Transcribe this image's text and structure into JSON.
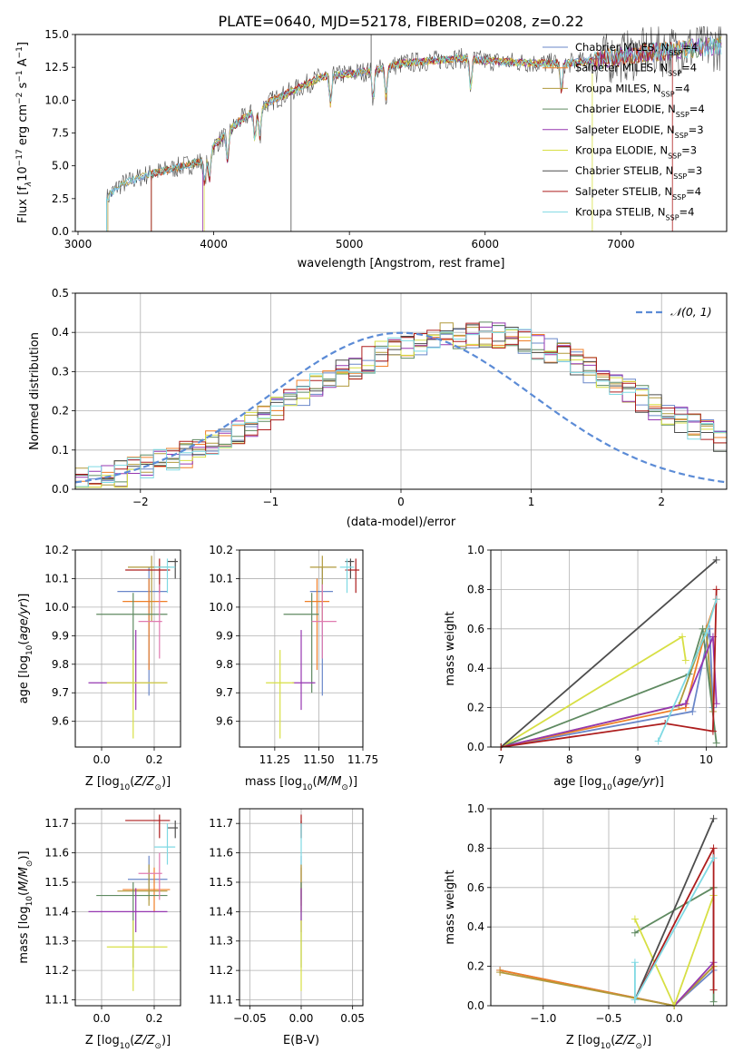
{
  "figure_title": "PLATE=0640, MJD=52178, FIBERID=0208, z=0.22",
  "legend": [
    "Chabrier MILES",
    "Salpeter MILES",
    "Kroupa MILES",
    "Chabrier ELODIE",
    "Salpeter ELODIE",
    "Kroupa ELODIE",
    "Chabrier STELIB",
    "Salpeter STELIB",
    "Kroupa STELIB"
  ],
  "nssp_label": "N",
  "nssp_sub": "SSP",
  "model_nssp": [
    "=4",
    "=4",
    "=4",
    "=4",
    "=3",
    "=3",
    "=3",
    "=4",
    "=4"
  ],
  "model_colors": [
    "#6a87c9",
    "#ef7f27",
    "#b19a3c",
    "#5f8a61",
    "#9537b0",
    "#d7df44",
    "#4d4d4d",
    "#ad1d1d",
    "#7fd9e3"
  ],
  "normal_legend": "𝒩(0, 1)",
  "chart_data": [
    {
      "id": "spectrum",
      "type": "line",
      "title": "PLATE=0640, MJD=52178, FIBERID=0208, z=0.22",
      "xlabel": "wavelength [Angstrom, rest frame]",
      "ylabel": "Flux [f_λ 10^-17 erg cm^-2 s^-1 A^-1]",
      "xlim": [
        2980,
        7780
      ],
      "ylim": [
        0,
        15
      ],
      "xticks": [
        "3000",
        "4000",
        "5000",
        "6000",
        "7000"
      ],
      "yticks": [
        "0.0",
        "2.5",
        "5.0",
        "7.5",
        "10.0",
        "12.5",
        "15.0"
      ],
      "data_range": [
        3210,
        7740
      ],
      "continuum": [
        [
          3210,
          2.5
        ],
        [
          3300,
          3.5
        ],
        [
          3500,
          4.3
        ],
        [
          3700,
          4.8
        ],
        [
          3900,
          5.3
        ],
        [
          4000,
          6.5
        ],
        [
          4200,
          8.5
        ],
        [
          4400,
          9.8
        ],
        [
          4600,
          10.8
        ],
        [
          4800,
          11.8
        ],
        [
          5000,
          12.0
        ],
        [
          5200,
          12.3
        ],
        [
          5400,
          12.8
        ],
        [
          5600,
          13.0
        ],
        [
          5800,
          13.2
        ],
        [
          6000,
          13.0
        ],
        [
          6200,
          12.9
        ],
        [
          6400,
          12.8
        ],
        [
          6600,
          12.8
        ],
        [
          6800,
          13.0
        ],
        [
          7000,
          13.3
        ],
        [
          7200,
          13.6
        ],
        [
          7400,
          13.8
        ],
        [
          7740,
          14.2
        ]
      ],
      "grid": false,
      "legend_position": "right"
    },
    {
      "id": "residuals",
      "type": "histogram",
      "xlabel": "(data-model)/error",
      "ylabel": "Normed distribution",
      "xlim": [
        -2.5,
        2.5
      ],
      "ylim": [
        0,
        0.5
      ],
      "xticks": [
        "−2",
        "−1",
        "0",
        "1",
        "2"
      ],
      "yticks": [
        "0.0",
        "0.1",
        "0.2",
        "0.3",
        "0.4",
        "0.5"
      ],
      "bins": 50,
      "values": [
        0.025,
        0.03,
        0.035,
        0.04,
        0.05,
        0.058,
        0.068,
        0.078,
        0.09,
        0.103,
        0.117,
        0.133,
        0.15,
        0.168,
        0.186,
        0.205,
        0.224,
        0.243,
        0.262,
        0.28,
        0.298,
        0.315,
        0.33,
        0.345,
        0.357,
        0.368,
        0.377,
        0.384,
        0.39,
        0.393,
        0.395,
        0.393,
        0.39,
        0.384,
        0.375,
        0.365,
        0.352,
        0.338,
        0.322,
        0.305,
        0.287,
        0.268,
        0.249,
        0.23,
        0.211,
        0.193,
        0.175,
        0.158,
        0.142,
        0.127
      ],
      "grid": true,
      "legend_position": "top-right"
    },
    {
      "id": "age_vs_Z",
      "type": "errorbar",
      "xlabel": "Z [log10(Z/Z☉)]",
      "ylabel": "age [log10(age/yr)]",
      "xlim": [
        -0.1,
        0.3
      ],
      "ylim": [
        9.51,
        10.2
      ],
      "xticks": [
        "0.0",
        "0.2"
      ],
      "yticks": [
        "9.6",
        "9.7",
        "9.8",
        "9.9",
        "10.0",
        "10.1",
        "10.2"
      ],
      "points": [
        [
          0.18,
          0.06,
          0.25,
          10.055,
          9.69,
          10.14
        ],
        [
          0.18,
          0.08,
          0.25,
          10.02,
          9.78,
          10.1
        ],
        [
          0.19,
          0.1,
          0.26,
          10.14,
          9.95,
          10.18
        ],
        [
          0.12,
          -0.02,
          0.25,
          9.975,
          9.7,
          10.05
        ],
        [
          0.13,
          -0.05,
          0.25,
          9.735,
          9.64,
          9.92
        ],
        [
          0.12,
          0.02,
          0.25,
          9.735,
          9.54,
          9.85
        ],
        [
          0.28,
          0.25,
          0.29,
          10.16,
          10.1,
          10.17
        ],
        [
          0.22,
          0.09,
          0.26,
          10.13,
          10.05,
          10.17
        ],
        [
          0.25,
          0.2,
          0.28,
          10.14,
          10.05,
          10.17
        ],
        [
          0.22,
          0.14,
          0.23,
          9.95,
          9.82,
          10.08
        ]
      ],
      "grid": true
    },
    {
      "id": "age_vs_mass",
      "type": "errorbar",
      "xlabel": "mass [log10(M/M☉)]",
      "ylabel": "",
      "xlim": [
        11.05,
        11.75
      ],
      "ylim": [
        9.51,
        10.2
      ],
      "xticks": [
        "11.25",
        "11.50",
        "11.75"
      ],
      "yticks": [
        "9.6",
        "9.7",
        "9.8",
        "9.9",
        "10.0",
        "10.1",
        "10.2"
      ],
      "points": [
        [
          11.52,
          11.45,
          11.58,
          10.055,
          9.69,
          10.14
        ],
        [
          11.49,
          11.42,
          11.56,
          10.02,
          9.78,
          10.1
        ],
        [
          11.52,
          11.45,
          11.6,
          10.14,
          9.95,
          10.18
        ],
        [
          11.46,
          11.3,
          11.5,
          9.975,
          9.7,
          10.05
        ],
        [
          11.4,
          11.35,
          11.48,
          9.735,
          9.64,
          9.92
        ],
        [
          11.28,
          11.2,
          11.36,
          9.735,
          9.54,
          9.85
        ],
        [
          11.68,
          11.65,
          11.7,
          10.16,
          10.1,
          10.17
        ],
        [
          11.71,
          11.65,
          11.73,
          10.13,
          10.05,
          10.17
        ],
        [
          11.66,
          11.62,
          11.7,
          10.14,
          10.05,
          10.17
        ],
        [
          11.52,
          11.46,
          11.6,
          9.95,
          9.82,
          10.08
        ]
      ],
      "grid": true
    },
    {
      "id": "weight_vs_age",
      "type": "line",
      "xlabel": "age [log10(age/yr)]",
      "ylabel": "mass weight",
      "xlim": [
        6.85,
        10.3
      ],
      "ylim": [
        0,
        1
      ],
      "xticks": [
        "7",
        "8",
        "9",
        "10"
      ],
      "yticks": [
        "0.0",
        "0.2",
        "0.4",
        "0.6",
        "0.8",
        "1.0"
      ],
      "series": [
        {
          "points": [
            [
              7.0,
              0.0
            ],
            [
              9.8,
              0.18
            ],
            [
              10.05,
              0.6
            ],
            [
              10.1,
              0.2
            ]
          ]
        },
        {
          "points": [
            [
              7.0,
              0.0
            ],
            [
              9.7,
              0.2
            ],
            [
              10.0,
              0.6
            ],
            [
              10.15,
              0.75
            ]
          ]
        },
        {
          "points": [
            [
              7.0,
              0.0
            ],
            [
              9.6,
              0.21
            ],
            [
              10.0,
              0.6
            ],
            [
              10.1,
              0.18
            ]
          ]
        },
        {
          "points": [
            [
              7.0,
              0.0
            ],
            [
              9.75,
              0.37
            ],
            [
              9.95,
              0.6
            ],
            [
              10.15,
              0.02
            ]
          ]
        },
        {
          "points": [
            [
              7.0,
              0.0
            ],
            [
              9.7,
              0.22
            ],
            [
              10.1,
              0.56
            ],
            [
              10.15,
              0.22
            ]
          ]
        },
        {
          "points": [
            [
              7.0,
              0.0
            ],
            [
              9.65,
              0.56
            ],
            [
              9.7,
              0.44
            ]
          ]
        },
        {
          "points": [
            [
              7.0,
              0.0
            ],
            [
              10.15,
              0.95
            ]
          ]
        },
        {
          "points": [
            [
              7.0,
              0.0
            ],
            [
              9.4,
              0.12
            ],
            [
              10.1,
              0.08
            ],
            [
              10.15,
              0.8
            ]
          ]
        },
        {
          "points": [
            [
              9.3,
              0.03
            ],
            [
              10.0,
              0.58
            ],
            [
              10.15,
              0.75
            ]
          ]
        }
      ],
      "grid": true
    },
    {
      "id": "mass_vs_Z",
      "type": "errorbar",
      "xlabel": "Z [log10(Z/Z☉)]",
      "ylabel": "mass [log10(M/M☉)]",
      "xlim": [
        -0.1,
        0.3
      ],
      "ylim": [
        11.08,
        11.75
      ],
      "xticks": [
        "0.0",
        "0.2"
      ],
      "yticks": [
        "11.1",
        "11.2",
        "11.3",
        "11.4",
        "11.5",
        "11.6",
        "11.7"
      ],
      "points": [
        [
          0.18,
          0.1,
          0.25,
          11.51,
          11.44,
          11.59
        ],
        [
          0.2,
          0.08,
          0.26,
          11.475,
          11.4,
          11.55
        ],
        [
          0.18,
          0.06,
          0.25,
          11.47,
          11.42,
          11.56
        ],
        [
          0.12,
          -0.02,
          0.25,
          11.455,
          11.21,
          11.5
        ],
        [
          0.13,
          -0.05,
          0.25,
          11.4,
          11.33,
          11.48
        ],
        [
          0.12,
          0.02,
          0.25,
          11.28,
          11.13,
          11.37
        ],
        [
          0.28,
          0.25,
          0.29,
          11.685,
          11.65,
          11.71
        ],
        [
          0.22,
          0.09,
          0.26,
          11.71,
          11.65,
          11.73
        ],
        [
          0.25,
          0.2,
          0.28,
          11.62,
          11.56,
          11.7
        ],
        [
          0.22,
          0.14,
          0.23,
          11.53,
          11.44,
          11.6
        ]
      ],
      "grid": true
    },
    {
      "id": "mass_vs_EBV",
      "type": "errorbar",
      "xlabel": "E(B-V)",
      "ylabel": "",
      "xlim": [
        -0.06,
        0.06
      ],
      "ylim": [
        11.08,
        11.75
      ],
      "xticks": [
        "−0.05",
        "0.00",
        "0.05"
      ],
      "yticks": [
        "11.1",
        "11.2",
        "11.3",
        "11.4",
        "11.5",
        "11.6",
        "11.7"
      ],
      "points": [
        [
          0,
          0,
          0,
          11.51,
          11.44,
          11.59
        ],
        [
          0,
          0,
          0,
          11.475,
          11.4,
          11.55
        ],
        [
          0,
          0,
          0,
          11.47,
          11.42,
          11.56
        ],
        [
          0,
          0,
          0,
          11.455,
          11.21,
          11.5
        ],
        [
          0,
          0,
          0,
          11.4,
          11.33,
          11.48
        ],
        [
          0,
          0,
          0,
          11.28,
          11.13,
          11.37
        ],
        [
          0,
          0,
          0,
          11.685,
          11.65,
          11.71
        ],
        [
          0,
          0,
          0,
          11.71,
          11.65,
          11.73
        ],
        [
          0,
          0,
          0,
          11.62,
          11.56,
          11.7
        ]
      ],
      "grid": true
    },
    {
      "id": "weight_vs_Z",
      "type": "line",
      "xlabel": "Z [log10(Z/Z☉)]",
      "ylabel": "mass weight",
      "xlim": [
        -1.4,
        0.4
      ],
      "ylim": [
        0,
        1
      ],
      "xticks": [
        "−1.0",
        "−0.5",
        "0.0"
      ],
      "yticks": [
        "0.0",
        "0.2",
        "0.4",
        "0.6",
        "0.8",
        "1.0"
      ],
      "series": [
        {
          "points": [
            [
              -1.33,
              0.18
            ],
            [
              0.0,
              0.0
            ],
            [
              0.3,
              0.18
            ],
            [
              0.3,
              0.6
            ]
          ]
        },
        {
          "points": [
            [
              -1.33,
              0.18
            ],
            [
              0.0,
              0.0
            ],
            [
              0.3,
              0.2
            ],
            [
              0.3,
              0.6
            ]
          ]
        },
        {
          "points": [
            [
              -1.33,
              0.17
            ],
            [
              0.0,
              0.0
            ],
            [
              0.3,
              0.2
            ]
          ]
        },
        {
          "points": [
            [
              -0.3,
              0.37
            ],
            [
              0.3,
              0.6
            ],
            [
              0.3,
              0.02
            ]
          ]
        },
        {
          "points": [
            [
              0.0,
              0.0
            ],
            [
              0.3,
              0.22
            ],
            [
              0.3,
              0.56
            ]
          ]
        },
        {
          "points": [
            [
              -0.3,
              0.44
            ],
            [
              0.0,
              0.0
            ],
            [
              0.3,
              0.56
            ]
          ]
        },
        {
          "points": [
            [
              -0.3,
              0.03
            ],
            [
              0.3,
              0.95
            ]
          ]
        },
        {
          "points": [
            [
              -0.3,
              0.03
            ],
            [
              0.3,
              0.8
            ],
            [
              0.3,
              0.08
            ]
          ]
        },
        {
          "points": [
            [
              -0.3,
              0.22
            ],
            [
              -0.3,
              0.03
            ],
            [
              0.3,
              0.75
            ]
          ]
        }
      ],
      "grid": true
    }
  ]
}
